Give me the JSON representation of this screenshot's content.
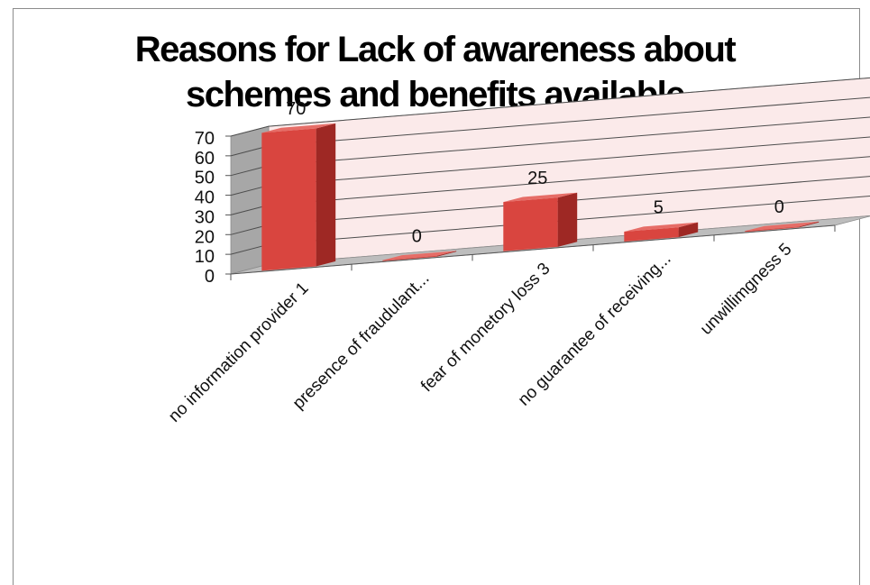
{
  "chart_data": {
    "type": "bar",
    "title": "Reasons for Lack of awareness about\nschemes and benefits available",
    "categories": [
      "no information provider 1",
      "presence of fraudulant...",
      "fear of monetory loss 3",
      "no guarantee of receiving...",
      "unwillimgness 5"
    ],
    "values": [
      70,
      0,
      25,
      5,
      0
    ],
    "data_labels": [
      "70",
      "0",
      "25",
      "5",
      "0"
    ],
    "ylim": [
      0,
      70
    ],
    "yticks": [
      "0",
      "10",
      "20",
      "30",
      "40",
      "50",
      "60",
      "70"
    ],
    "grid": true,
    "legend": "none",
    "three_d": true,
    "colors": {
      "bar_front": "#d9453f",
      "bar_side": "#9e2824",
      "bar_top": "#e66d67",
      "back_wall": "#fbeaea",
      "side_wall": "#a7a7a7",
      "floor": "#bdbdbd"
    }
  }
}
